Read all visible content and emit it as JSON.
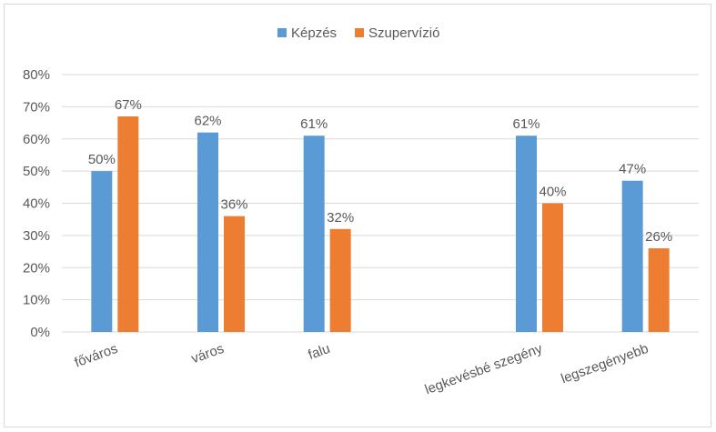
{
  "chart_data": {
    "type": "bar",
    "categories": [
      "főváros",
      "város",
      "falu",
      "",
      "legkevésbé szegény",
      "legszegényebb"
    ],
    "series": [
      {
        "name": "Képzés",
        "color": "#5b9bd5",
        "values": [
          50,
          62,
          61,
          null,
          61,
          47
        ],
        "labels": [
          "50%",
          "62%",
          "61%",
          "",
          "61%",
          "47%"
        ]
      },
      {
        "name": "Szupervízió",
        "color": "#ed7d31",
        "values": [
          67,
          36,
          32,
          null,
          40,
          26
        ],
        "labels": [
          "67%",
          "36%",
          "32%",
          "",
          "40%",
          "26%"
        ]
      }
    ],
    "ylim": [
      0,
      80
    ],
    "yticks": [
      "0%",
      "10%",
      "20%",
      "30%",
      "40%",
      "50%",
      "60%",
      "70%",
      "80%"
    ],
    "grid": true,
    "legend_position": "top"
  }
}
